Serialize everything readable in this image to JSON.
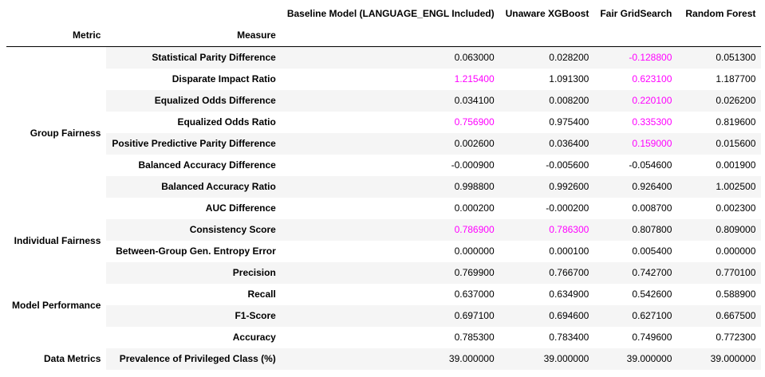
{
  "columns": {
    "index_names": [
      "Metric",
      "Measure"
    ],
    "models": [
      "Baseline Model (LANGUAGE_ENGL Included)",
      "Unaware XGBoost",
      "Fair GridSearch",
      "Random Forest"
    ]
  },
  "groups": [
    {
      "name": "Group Fairness",
      "rows": [
        {
          "measure": "Statistical Parity Difference",
          "values": [
            "0.063000",
            "0.028200",
            "-0.128800",
            "0.051300"
          ],
          "highlight": [
            false,
            false,
            true,
            false
          ]
        },
        {
          "measure": "Disparate Impact Ratio",
          "values": [
            "1.215400",
            "1.091300",
            "0.623100",
            "1.187700"
          ],
          "highlight": [
            true,
            false,
            true,
            false
          ]
        },
        {
          "measure": "Equalized Odds Difference",
          "values": [
            "0.034100",
            "0.008200",
            "0.220100",
            "0.026200"
          ],
          "highlight": [
            false,
            false,
            true,
            false
          ]
        },
        {
          "measure": "Equalized Odds Ratio",
          "values": [
            "0.756900",
            "0.975400",
            "0.335300",
            "0.819600"
          ],
          "highlight": [
            true,
            false,
            true,
            false
          ]
        },
        {
          "measure": "Positive Predictive Parity Difference",
          "values": [
            "0.002600",
            "0.036400",
            "0.159000",
            "0.015600"
          ],
          "highlight": [
            false,
            false,
            true,
            false
          ]
        },
        {
          "measure": "Balanced Accuracy Difference",
          "values": [
            "-0.000900",
            "-0.005600",
            "-0.054600",
            "0.001900"
          ],
          "highlight": [
            false,
            false,
            false,
            false
          ]
        },
        {
          "measure": "Balanced Accuracy Ratio",
          "values": [
            "0.998800",
            "0.992600",
            "0.926400",
            "1.002500"
          ],
          "highlight": [
            false,
            false,
            false,
            false
          ]
        },
        {
          "measure": "AUC Difference",
          "values": [
            "0.000200",
            "-0.000200",
            "0.008700",
            "0.002300"
          ],
          "highlight": [
            false,
            false,
            false,
            false
          ]
        }
      ]
    },
    {
      "name": "Individual Fairness",
      "rows": [
        {
          "measure": "Consistency Score",
          "values": [
            "0.786900",
            "0.786300",
            "0.807800",
            "0.809000"
          ],
          "highlight": [
            true,
            true,
            false,
            false
          ]
        },
        {
          "measure": "Between-Group Gen. Entropy Error",
          "values": [
            "0.000000",
            "0.000100",
            "0.005400",
            "0.000000"
          ],
          "highlight": [
            false,
            false,
            false,
            false
          ]
        }
      ]
    },
    {
      "name": "Model Performance",
      "rows": [
        {
          "measure": "Precision",
          "values": [
            "0.769900",
            "0.766700",
            "0.742700",
            "0.770100"
          ],
          "highlight": [
            false,
            false,
            false,
            false
          ]
        },
        {
          "measure": "Recall",
          "values": [
            "0.637000",
            "0.634900",
            "0.542600",
            "0.588900"
          ],
          "highlight": [
            false,
            false,
            false,
            false
          ]
        },
        {
          "measure": "F1-Score",
          "values": [
            "0.697100",
            "0.694600",
            "0.627100",
            "0.667500"
          ],
          "highlight": [
            false,
            false,
            false,
            false
          ]
        },
        {
          "measure": "Accuracy",
          "values": [
            "0.785300",
            "0.783400",
            "0.749600",
            "0.772300"
          ],
          "highlight": [
            false,
            false,
            false,
            false
          ]
        }
      ]
    },
    {
      "name": "Data Metrics",
      "rows": [
        {
          "measure": "Prevalence of Privileged Class (%)",
          "values": [
            "39.000000",
            "39.000000",
            "39.000000",
            "39.000000"
          ],
          "highlight": [
            false,
            false,
            false,
            false
          ]
        }
      ]
    }
  ],
  "colors": {
    "highlight": "#ff00ff",
    "stripe": "#f5f5f5",
    "text": "#000000",
    "background": "#ffffff"
  }
}
